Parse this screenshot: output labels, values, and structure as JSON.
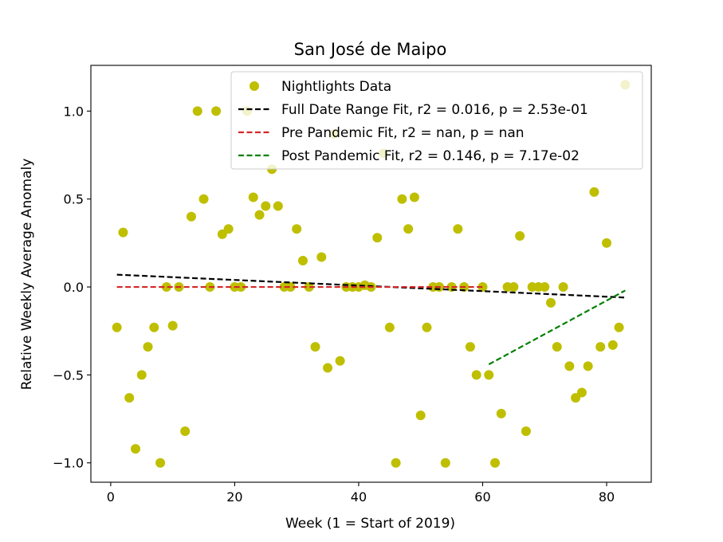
{
  "chart_data": {
    "type": "scatter",
    "title": "San José de Maipo",
    "xlabel": "Week (1 = Start of 2019)",
    "ylabel": "Relative Weekly Average Anomaly",
    "xlim": [
      -3.2,
      87.2
    ],
    "ylim": [
      -1.11,
      1.26
    ],
    "xticks": [
      0,
      20,
      40,
      60,
      80
    ],
    "xtick_labels": [
      "0",
      "20",
      "40",
      "60",
      "80"
    ],
    "yticks": [
      -1.0,
      -0.5,
      0.0,
      0.5,
      1.0
    ],
    "ytick_labels": [
      "−1.0",
      "−0.5",
      "0.0",
      "0.5",
      "1.0"
    ],
    "grid": false,
    "legend_position": "top-right",
    "series": [
      {
        "name": "Nightlights Data",
        "kind": "points",
        "color": "#bfbf00",
        "x": [
          1,
          2,
          3,
          4,
          5,
          6,
          7,
          8,
          9,
          10,
          11,
          12,
          13,
          14,
          15,
          16,
          17,
          18,
          19,
          20,
          21,
          22,
          23,
          24,
          25,
          26,
          27,
          28,
          29,
          30,
          31,
          32,
          33,
          34,
          35,
          36,
          37,
          38,
          39,
          40,
          41,
          42,
          43,
          44,
          45,
          46,
          47,
          48,
          49,
          50,
          51,
          52,
          53,
          54,
          55,
          56,
          57,
          58,
          59,
          60,
          61,
          62,
          63,
          64,
          65,
          66,
          67,
          68,
          69,
          70,
          71,
          72,
          73,
          74,
          75,
          76,
          77,
          78,
          79,
          80,
          81,
          82,
          83
        ],
        "y": [
          -0.23,
          0.31,
          -0.63,
          -0.92,
          -0.5,
          -0.34,
          -0.23,
          -1.0,
          0.0,
          -0.22,
          0.0,
          -0.82,
          0.4,
          1.0,
          0.5,
          0.0,
          1.0,
          0.3,
          0.33,
          0.0,
          0.0,
          1.0,
          0.51,
          0.41,
          0.46,
          0.67,
          0.46,
          0.0,
          0.0,
          0.33,
          0.15,
          0.0,
          -0.34,
          0.17,
          -0.46,
          0.87,
          -0.42,
          0.0,
          0.0,
          0.0,
          0.01,
          0.0,
          0.28,
          0.76,
          -0.23,
          -1.0,
          0.5,
          0.33,
          0.51,
          -0.73,
          -0.23,
          0.0,
          0.0,
          -1.0,
          0.0,
          0.33,
          0.0,
          -0.34,
          -0.5,
          0.0,
          -0.5,
          -1.0,
          -0.72,
          0.0,
          0.0,
          0.29,
          -0.82,
          0.0,
          0.0,
          0.0,
          -0.09,
          -0.34,
          0.0,
          -0.45,
          -0.63,
          -0.6,
          -0.45,
          0.54,
          -0.34,
          0.25,
          -0.33,
          -0.23,
          1.15
        ]
      },
      {
        "name": "Full Date Range Fit, r2 = 0.016, p = 2.53e-01",
        "kind": "dashed-line",
        "color": "#000000",
        "x": [
          1,
          83
        ],
        "y": [
          0.07,
          -0.06
        ]
      },
      {
        "name": "Pre Pandemic Fit, r2 = nan, p = nan",
        "kind": "dashed-line",
        "color": "#d62728",
        "x": [
          1,
          60
        ],
        "y": [
          0.0,
          0.0
        ]
      },
      {
        "name": "Post Pandemic Fit, r2 = 0.146, p = 7.17e-02",
        "kind": "dashed-line",
        "color": "#008000",
        "x": [
          61,
          83
        ],
        "y": [
          -0.44,
          -0.02
        ]
      }
    ]
  }
}
